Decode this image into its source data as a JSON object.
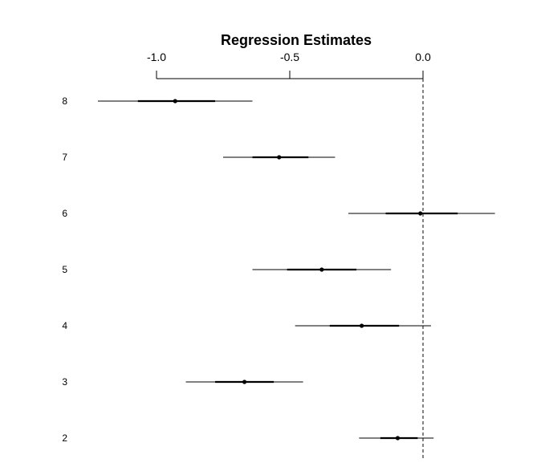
{
  "chart_data": {
    "type": "coefficient-plot",
    "title": "Regression Estimates",
    "xlabel": "",
    "ylabel": "",
    "axis_position": "top",
    "xlim": [
      -1.1,
      0.3
    ],
    "x_ticks": [
      -1.0,
      -0.5,
      0.0
    ],
    "x_tick_labels": [
      "-1.0",
      "-0.5",
      "0.0"
    ],
    "reference_line": 0.0,
    "reference_line_style": "dashed",
    "grid": false,
    "colors": {
      "marks": "#000000",
      "reference": "#333333"
    },
    "categories": [
      "8",
      "7",
      "6",
      "5",
      "4",
      "3",
      "2"
    ],
    "estimates": [
      -0.93,
      -0.54,
      -0.01,
      -0.38,
      -0.23,
      -0.67,
      -0.095
    ],
    "inner_interval": [
      [
        -1.07,
        -0.78
      ],
      [
        -0.64,
        -0.43
      ],
      [
        -0.14,
        0.13
      ],
      [
        -0.51,
        -0.25
      ],
      [
        -0.35,
        -0.09
      ],
      [
        -0.78,
        -0.56
      ],
      [
        -0.16,
        -0.02
      ]
    ],
    "outer_interval": [
      [
        -1.22,
        -0.64
      ],
      [
        -0.75,
        -0.33
      ],
      [
        -0.28,
        0.27
      ],
      [
        -0.64,
        -0.12
      ],
      [
        -0.48,
        0.03
      ],
      [
        -0.89,
        -0.45
      ],
      [
        -0.24,
        0.04
      ]
    ]
  }
}
